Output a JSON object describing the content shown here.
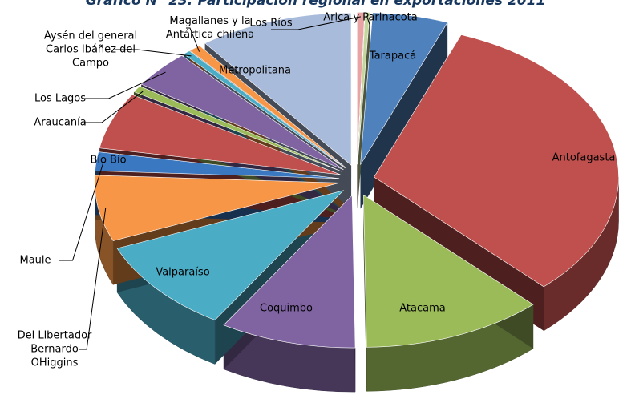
{
  "chart_data": {
    "type": "pie",
    "title": "Gráfico N° 23: Participación regional en exportaciones 2011",
    "categories": [
      "Tarapacá",
      "Antofagasta",
      "Atacama",
      "Coquimbo",
      "Valparaíso",
      "Del Libertador Bernardo OHiggins",
      "Maule",
      "Bío Bío",
      "Araucanía",
      "Los Lagos",
      "Aysén del general Carlos Ibáñez del Campo",
      "Magallanes y la Antártica chilena",
      "Metropolitana",
      "Los Ríos",
      "Arica y Parinacota"
    ],
    "values": [
      5,
      32,
      12,
      9,
      10,
      7,
      2,
      6,
      0.7,
      4,
      0.5,
      0.8,
      10.2,
      0.5,
      0.3
    ],
    "colors": [
      "#4f81bd",
      "#c0504d",
      "#9bbb59",
      "#8064a2",
      "#4bacc6",
      "#f79646",
      "#3a78c2",
      "#c0504d",
      "#9bbb59",
      "#8064a2",
      "#4bacc6",
      "#f79646",
      "#a9bbda",
      "#e8a4a4",
      "#c3d69b"
    ]
  }
}
